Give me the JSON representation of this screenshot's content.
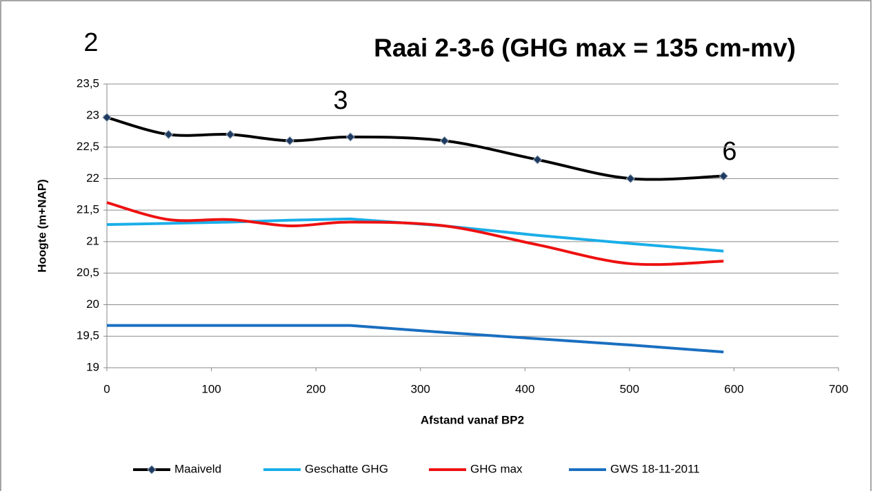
{
  "chart_data": {
    "type": "line",
    "title": "Raai 2-3-6 (GHG max = 135 cm-mv)",
    "annotations": [
      "2",
      "3",
      "6"
    ],
    "x_label": "Afstand vanaf BP2",
    "y_label": "Hoogte (m+NAP)",
    "x": [
      0,
      59,
      118,
      175,
      233,
      323,
      412,
      501,
      590
    ],
    "series": [
      {
        "name": "Maaiveld",
        "color": "#000000",
        "marker": "diamond",
        "smooth": true,
        "values": [
          22.97,
          22.7,
          22.7,
          22.6,
          22.66,
          22.6,
          22.3,
          22.0,
          22.04
        ]
      },
      {
        "name": "Geschatte GHG",
        "color": "#1aaee8",
        "smooth": false,
        "values": [
          21.27,
          21.29,
          21.31,
          21.34,
          21.36,
          21.25,
          21.1,
          20.97,
          20.85
        ]
      },
      {
        "name": "GHG max",
        "color": "#ee1111",
        "smooth": true,
        "values": [
          21.62,
          21.35,
          21.35,
          21.25,
          21.31,
          21.25,
          20.95,
          20.65,
          20.69
        ]
      },
      {
        "name": "GWS 18-11-2011",
        "color": "#1a6fc0",
        "smooth": false,
        "values": [
          19.67,
          19.67,
          19.67,
          19.67,
          19.67,
          19.56,
          19.46,
          19.36,
          19.25
        ]
      }
    ],
    "xlim": [
      0,
      700
    ],
    "xticks": [
      0,
      100,
      200,
      300,
      400,
      500,
      600,
      700
    ],
    "ylim": [
      19,
      23.5
    ],
    "yticks": [
      19,
      {
        "value": 19.5,
        "label": "19,5"
      },
      20,
      {
        "value": 20.5,
        "label": "20,5"
      },
      21,
      {
        "value": 21.5,
        "label": "21,5"
      },
      22,
      {
        "value": 22.5,
        "label": "22,5"
      },
      23,
      {
        "value": 23.5,
        "label": "23,5"
      }
    ],
    "grid": true,
    "legend": "bottom"
  }
}
